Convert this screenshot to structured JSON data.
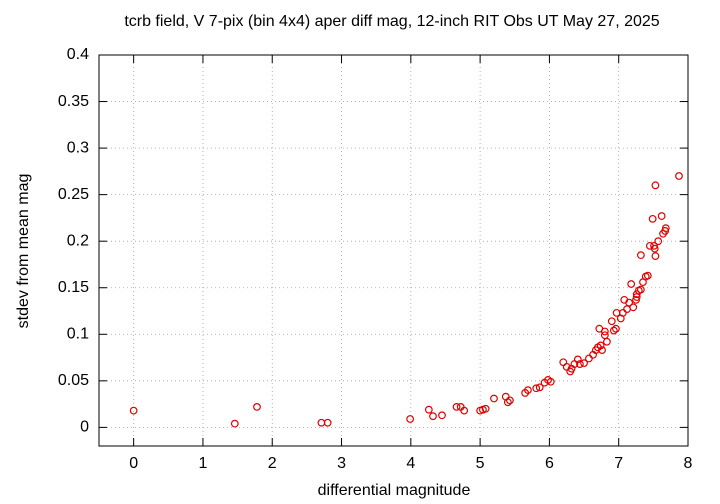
{
  "chart_data": {
    "type": "scatter",
    "title": "tcrb field, V 7-pix (bin 4x4) aper diff mag,  12-inch RIT Obs UT May 27, 2025",
    "x_label": "differential magnitude",
    "y_label": "stdev from mean mag",
    "color": "#e00000",
    "grid": true,
    "xlim": [
      -0.5,
      8
    ],
    "ylim": [
      -0.02,
      0.4
    ],
    "xticks": [
      0,
      1,
      2,
      3,
      4,
      5,
      6,
      7,
      8
    ],
    "yticks": [
      0,
      0.05,
      0.1,
      0.15,
      0.2,
      0.25,
      0.3,
      0.35,
      0.4
    ],
    "x": [
      0,
      1.46,
      1.78,
      2.71,
      2.8,
      3.99,
      4.26,
      4.32,
      4.45,
      4.66,
      4.72,
      4.77,
      5.0,
      5.04,
      5.08,
      5.2,
      5.37,
      5.4,
      5.43,
      5.65,
      5.69,
      5.81,
      5.86,
      5.93,
      5.98,
      6.02,
      6.2,
      6.25,
      6.3,
      6.32,
      6.36,
      6.41,
      6.44,
      6.5,
      6.57,
      6.63,
      6.67,
      6.7,
      6.74,
      6.76,
      6.72,
      6.8,
      6.8,
      6.83,
      6.9,
      6.93,
      6.96,
      6.97,
      7.03,
      7.06,
      7.08,
      7.12,
      7.15,
      7.18,
      7.21,
      7.25,
      7.26,
      7.26,
      7.29,
      7.32,
      7.32,
      7.35,
      7.39,
      7.42,
      7.45,
      7.49,
      7.51,
      7.52,
      7.53,
      7.53,
      7.57,
      7.62,
      7.64,
      7.67,
      7.68,
      7.87
    ],
    "values": [
      0.018,
      0.004,
      0.022,
      0.005,
      0.005,
      0.009,
      0.019,
      0.012,
      0.013,
      0.022,
      0.022,
      0.018,
      0.018,
      0.019,
      0.02,
      0.031,
      0.033,
      0.027,
      0.029,
      0.037,
      0.04,
      0.042,
      0.043,
      0.048,
      0.051,
      0.049,
      0.07,
      0.065,
      0.06,
      0.063,
      0.068,
      0.073,
      0.068,
      0.069,
      0.074,
      0.078,
      0.083,
      0.086,
      0.088,
      0.083,
      0.106,
      0.103,
      0.099,
      0.092,
      0.114,
      0.104,
      0.106,
      0.123,
      0.117,
      0.123,
      0.137,
      0.127,
      0.134,
      0.154,
      0.129,
      0.137,
      0.143,
      0.14,
      0.147,
      0.148,
      0.185,
      0.156,
      0.162,
      0.163,
      0.195,
      0.224,
      0.195,
      0.192,
      0.184,
      0.26,
      0.2,
      0.227,
      0.208,
      0.211,
      0.214,
      0.27
    ]
  }
}
